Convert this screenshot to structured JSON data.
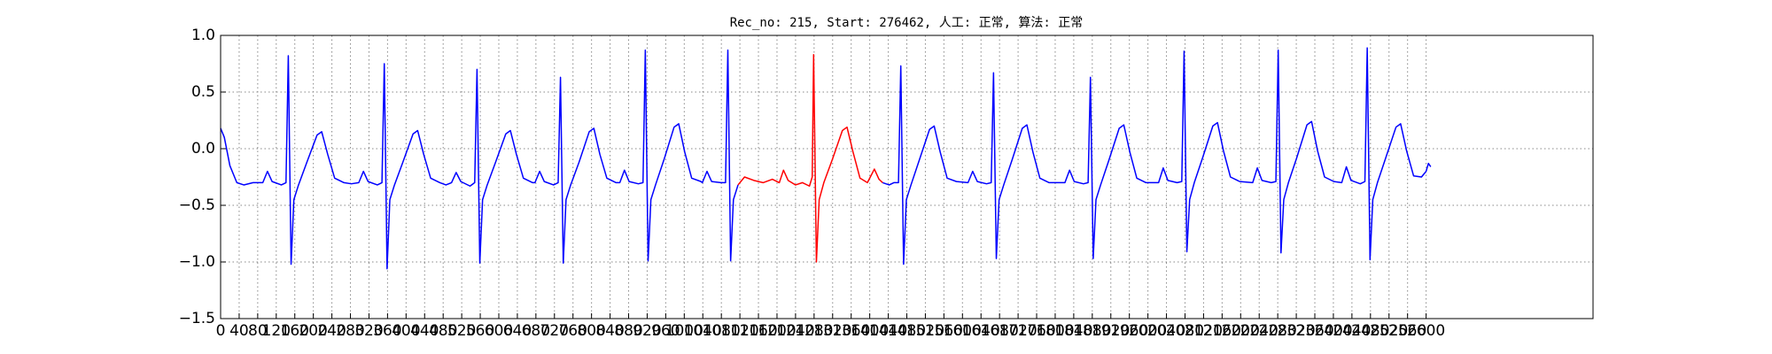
{
  "chart_data": {
    "type": "line",
    "title": "Rec_no: 215, Start: 276462, 人工: 正常, 算法: 正常",
    "xlim": [
      0,
      2960
    ],
    "xticks": [
      0,
      40,
      80,
      120,
      160,
      200,
      240,
      280,
      320,
      360,
      400,
      440,
      480,
      520,
      560,
      600,
      640,
      680,
      720,
      760,
      800,
      840,
      880,
      920,
      960,
      1000,
      1040,
      1080,
      1120,
      1160,
      1200,
      1240,
      1280,
      1320,
      1360,
      1400,
      1440,
      1480,
      1520,
      1560,
      1600,
      1640,
      1680,
      1720,
      1760,
      1800,
      1840,
      1880,
      1920,
      1960,
      2000,
      2040,
      2080,
      2120,
      2160,
      2200,
      2240,
      2280,
      2320,
      2360,
      2400,
      2440,
      2480,
      2520,
      2560,
      2600
    ],
    "ylim": [
      -1.5,
      1.0
    ],
    "yticks": [
      {
        "value": -1.5,
        "label": "−1.5"
      },
      {
        "value": -1.0,
        "label": "−1.0"
      },
      {
        "value": -0.5,
        "label": "−0.5"
      },
      {
        "value": 0,
        "label": "0.0"
      },
      0.5,
      {
        "value": 1.0,
        "label": "1.0"
      }
    ],
    "grid": true,
    "series": [
      {
        "color": "#0000ff",
        "x": [
          0,
          8,
          20,
          35,
          50,
          70,
          91,
          101,
          111,
          131,
          141,
          146,
          152,
          158,
          168,
          186,
          208,
          218,
          231,
          246,
          266,
          282,
          298,
          308,
          318,
          338,
          348,
          353,
          359,
          365,
          375,
          393,
          415,
          425,
          438,
          453,
          473,
          486,
          498,
          508,
          518,
          538,
          548,
          553,
          559,
          565,
          575,
          593,
          615,
          625,
          638,
          653,
          673,
          678,
          688,
          698,
          718,
          728,
          733,
          739,
          745,
          755,
          773,
          795,
          805,
          818,
          833,
          853,
          861,
          871,
          881,
          901,
          911,
          916,
          922,
          928,
          938,
          956,
          978,
          988,
          1001,
          1016,
          1036,
          1039,
          1049,
          1059,
          1079,
          1089,
          1094,
          1100,
          1106,
          1116
        ],
        "values": [
          0.18,
          0.1,
          -0.15,
          -0.3,
          -0.32,
          -0.3,
          -0.3,
          -0.2,
          -0.29,
          -0.32,
          -0.3,
          0.82,
          -1.02,
          -0.45,
          -0.32,
          -0.12,
          0.12,
          0.15,
          -0.05,
          -0.26,
          -0.3,
          -0.31,
          -0.3,
          -0.2,
          -0.29,
          -0.32,
          -0.3,
          0.75,
          -1.06,
          -0.45,
          -0.32,
          -0.12,
          0.13,
          0.16,
          -0.05,
          -0.26,
          -0.3,
          -0.32,
          -0.3,
          -0.21,
          -0.29,
          -0.33,
          -0.3,
          0.7,
          -1.01,
          -0.45,
          -0.32,
          -0.12,
          0.13,
          0.16,
          -0.05,
          -0.26,
          -0.3,
          -0.3,
          -0.2,
          -0.29,
          -0.32,
          -0.3,
          0.63,
          -1.01,
          -0.45,
          -0.32,
          -0.12,
          0.15,
          0.18,
          -0.05,
          -0.26,
          -0.3,
          -0.3,
          -0.19,
          -0.29,
          -0.31,
          -0.3,
          0.87,
          -0.99,
          -0.45,
          -0.32,
          -0.1,
          0.19,
          0.22,
          -0.03,
          -0.26,
          -0.29,
          -0.3,
          -0.2,
          -0.29,
          -0.3,
          -0.3,
          0.87,
          -0.99,
          -0.45,
          -0.32
        ]
      },
      {
        "color": "#ff0000",
        "x": [
          1116,
          1130,
          1150,
          1170,
          1190,
          1205,
          1214,
          1224,
          1240,
          1255,
          1270,
          1276,
          1279,
          1285,
          1291,
          1301,
          1319,
          1341,
          1351,
          1364,
          1379,
          1395,
          1410,
          1420,
          1428
        ],
        "values": [
          -0.32,
          -0.25,
          -0.28,
          -0.3,
          -0.27,
          -0.3,
          -0.19,
          -0.28,
          -0.32,
          -0.3,
          -0.33,
          -0.25,
          0.83,
          -1.0,
          -0.45,
          -0.3,
          -0.1,
          0.16,
          0.19,
          -0.03,
          -0.26,
          -0.3,
          -0.18,
          -0.27,
          -0.3
        ]
      },
      {
        "color": "#0000ff",
        "x": [
          1428,
          1442,
          1452,
          1462,
          1467,
          1473,
          1479,
          1489,
          1507,
          1529,
          1539,
          1552,
          1567,
          1587,
          1612,
          1622,
          1632,
          1652,
          1662,
          1667,
          1673,
          1679,
          1689,
          1707,
          1729,
          1739,
          1752,
          1767,
          1787,
          1821,
          1831,
          1841,
          1861,
          1871,
          1876,
          1882,
          1888,
          1898,
          1916,
          1938,
          1948,
          1961,
          1976,
          1996,
          2023,
          2033,
          2043,
          2063,
          2073,
          2078,
          2084,
          2090,
          2100,
          2118,
          2140,
          2150,
          2163,
          2178,
          2198,
          2226,
          2236,
          2246,
          2266,
          2276,
          2281,
          2287,
          2293,
          2303,
          2321,
          2343,
          2353,
          2366,
          2381,
          2401,
          2418,
          2428,
          2438,
          2458,
          2468,
          2473,
          2479,
          2485,
          2495,
          2513,
          2535,
          2545,
          2558,
          2573,
          2590,
          2600,
          2605,
          2610
        ],
        "values": [
          -0.3,
          -0.32,
          -0.3,
          -0.3,
          0.73,
          -1.02,
          -0.45,
          -0.32,
          -0.1,
          0.17,
          0.2,
          -0.03,
          -0.26,
          -0.29,
          -0.3,
          -0.2,
          -0.29,
          -0.31,
          -0.3,
          0.67,
          -0.97,
          -0.45,
          -0.32,
          -0.1,
          0.18,
          0.21,
          -0.03,
          -0.26,
          -0.3,
          -0.3,
          -0.19,
          -0.29,
          -0.31,
          -0.3,
          0.63,
          -0.97,
          -0.45,
          -0.32,
          -0.1,
          0.18,
          0.21,
          -0.03,
          -0.26,
          -0.3,
          -0.3,
          -0.17,
          -0.28,
          -0.3,
          -0.29,
          0.86,
          -0.91,
          -0.45,
          -0.3,
          -0.08,
          0.2,
          0.23,
          -0.02,
          -0.25,
          -0.29,
          -0.3,
          -0.17,
          -0.28,
          -0.3,
          -0.29,
          0.87,
          -0.92,
          -0.45,
          -0.3,
          -0.08,
          0.21,
          0.24,
          -0.02,
          -0.25,
          -0.29,
          -0.3,
          -0.16,
          -0.28,
          -0.31,
          -0.29,
          0.89,
          -0.98,
          -0.45,
          -0.3,
          -0.08,
          0.19,
          0.22,
          -0.02,
          -0.24,
          -0.25,
          -0.2,
          -0.13,
          -0.16
        ]
      }
    ]
  }
}
